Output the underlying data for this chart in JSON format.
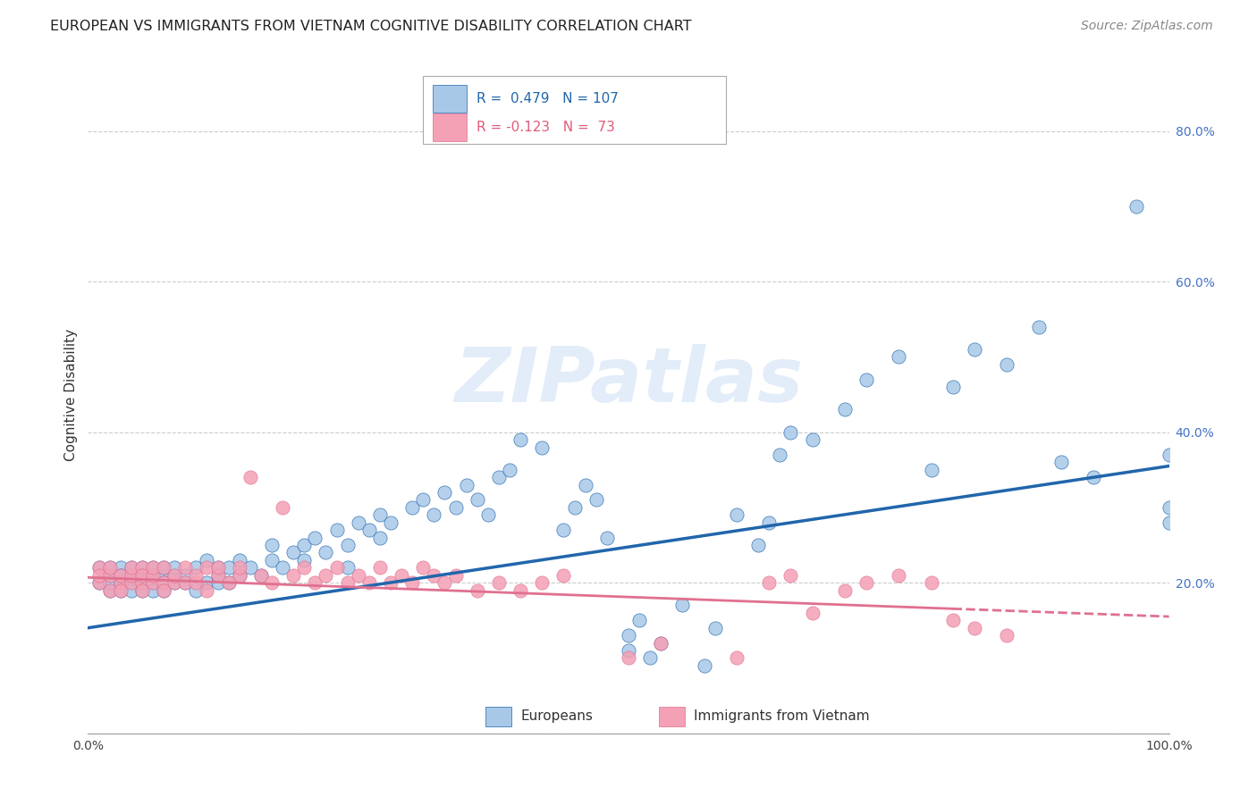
{
  "title": "EUROPEAN VS IMMIGRANTS FROM VIETNAM COGNITIVE DISABILITY CORRELATION CHART",
  "source": "Source: ZipAtlas.com",
  "ylabel": "Cognitive Disability",
  "title_fontsize": 11.5,
  "source_fontsize": 10,
  "ylabel_fontsize": 11,
  "blue_R": 0.479,
  "blue_N": 107,
  "pink_R": -0.123,
  "pink_N": 73,
  "blue_color": "#a8c8e8",
  "blue_line_color": "#2166ac",
  "pink_color": "#f4a0b5",
  "pink_line_color": "#e07090",
  "background_color": "#ffffff",
  "grid_color": "#cccccc",
  "legend_label_blue": "Europeans",
  "legend_label_pink": "Immigrants from Vietnam",
  "watermark": "ZIPatlas",
  "ylim": [
    0.0,
    0.9
  ],
  "xlim": [
    0.0,
    1.0
  ],
  "right_yticks": [
    0.0,
    0.2,
    0.4,
    0.6,
    0.8
  ],
  "right_ytick_labels": [
    "",
    "20.0%",
    "40.0%",
    "60.0%",
    "80.0%"
  ],
  "xtick_labels": [
    "0.0%",
    "",
    "",
    "",
    "",
    "100.0%"
  ],
  "blue_line_x0": 0.0,
  "blue_line_y0": 0.14,
  "blue_line_x1": 1.0,
  "blue_line_y1": 0.355,
  "pink_line_x0": 0.0,
  "pink_line_y0": 0.207,
  "pink_line_x1": 1.0,
  "pink_line_y1": 0.155,
  "blue_x": [
    0.01,
    0.01,
    0.02,
    0.02,
    0.02,
    0.02,
    0.03,
    0.03,
    0.03,
    0.03,
    0.03,
    0.04,
    0.04,
    0.04,
    0.04,
    0.05,
    0.05,
    0.05,
    0.05,
    0.05,
    0.06,
    0.06,
    0.06,
    0.06,
    0.07,
    0.07,
    0.07,
    0.07,
    0.08,
    0.08,
    0.08,
    0.09,
    0.09,
    0.1,
    0.1,
    0.11,
    0.11,
    0.12,
    0.12,
    0.12,
    0.13,
    0.13,
    0.14,
    0.14,
    0.15,
    0.16,
    0.17,
    0.17,
    0.18,
    0.19,
    0.2,
    0.2,
    0.21,
    0.22,
    0.23,
    0.24,
    0.24,
    0.25,
    0.26,
    0.27,
    0.27,
    0.28,
    0.3,
    0.31,
    0.32,
    0.33,
    0.34,
    0.35,
    0.36,
    0.37,
    0.38,
    0.39,
    0.4,
    0.42,
    0.44,
    0.45,
    0.46,
    0.47,
    0.48,
    0.5,
    0.5,
    0.51,
    0.52,
    0.53,
    0.55,
    0.57,
    0.58,
    0.6,
    0.62,
    0.63,
    0.64,
    0.65,
    0.67,
    0.7,
    0.72,
    0.75,
    0.78,
    0.8,
    0.82,
    0.85,
    0.88,
    0.9,
    0.93,
    0.97,
    1.0,
    1.0,
    1.0
  ],
  "blue_y": [
    0.2,
    0.22,
    0.19,
    0.21,
    0.2,
    0.22,
    0.2,
    0.21,
    0.19,
    0.22,
    0.21,
    0.2,
    0.22,
    0.21,
    0.19,
    0.2,
    0.21,
    0.19,
    0.22,
    0.21,
    0.2,
    0.22,
    0.21,
    0.19,
    0.21,
    0.2,
    0.22,
    0.19,
    0.2,
    0.21,
    0.22,
    0.2,
    0.21,
    0.19,
    0.22,
    0.2,
    0.23,
    0.2,
    0.22,
    0.21,
    0.22,
    0.2,
    0.23,
    0.21,
    0.22,
    0.21,
    0.23,
    0.25,
    0.22,
    0.24,
    0.25,
    0.23,
    0.26,
    0.24,
    0.27,
    0.25,
    0.22,
    0.28,
    0.27,
    0.29,
    0.26,
    0.28,
    0.3,
    0.31,
    0.29,
    0.32,
    0.3,
    0.33,
    0.31,
    0.29,
    0.34,
    0.35,
    0.39,
    0.38,
    0.27,
    0.3,
    0.33,
    0.31,
    0.26,
    0.13,
    0.11,
    0.15,
    0.1,
    0.12,
    0.17,
    0.09,
    0.14,
    0.29,
    0.25,
    0.28,
    0.37,
    0.4,
    0.39,
    0.43,
    0.47,
    0.5,
    0.35,
    0.46,
    0.51,
    0.49,
    0.54,
    0.36,
    0.34,
    0.7,
    0.3,
    0.28,
    0.37
  ],
  "pink_x": [
    0.01,
    0.01,
    0.01,
    0.02,
    0.02,
    0.02,
    0.03,
    0.03,
    0.03,
    0.04,
    0.04,
    0.04,
    0.05,
    0.05,
    0.05,
    0.05,
    0.06,
    0.06,
    0.06,
    0.07,
    0.07,
    0.07,
    0.08,
    0.08,
    0.09,
    0.09,
    0.1,
    0.1,
    0.11,
    0.11,
    0.12,
    0.12,
    0.13,
    0.14,
    0.14,
    0.15,
    0.16,
    0.17,
    0.18,
    0.19,
    0.2,
    0.21,
    0.22,
    0.23,
    0.24,
    0.25,
    0.26,
    0.27,
    0.28,
    0.29,
    0.3,
    0.31,
    0.32,
    0.33,
    0.34,
    0.36,
    0.38,
    0.4,
    0.42,
    0.44,
    0.5,
    0.53,
    0.6,
    0.63,
    0.65,
    0.67,
    0.7,
    0.72,
    0.75,
    0.78,
    0.8,
    0.82,
    0.85
  ],
  "pink_y": [
    0.2,
    0.22,
    0.21,
    0.19,
    0.21,
    0.22,
    0.2,
    0.21,
    0.19,
    0.2,
    0.21,
    0.22,
    0.2,
    0.22,
    0.21,
    0.19,
    0.2,
    0.21,
    0.22,
    0.2,
    0.19,
    0.22,
    0.2,
    0.21,
    0.2,
    0.22,
    0.2,
    0.21,
    0.22,
    0.19,
    0.21,
    0.22,
    0.2,
    0.21,
    0.22,
    0.34,
    0.21,
    0.2,
    0.3,
    0.21,
    0.22,
    0.2,
    0.21,
    0.22,
    0.2,
    0.21,
    0.2,
    0.22,
    0.2,
    0.21,
    0.2,
    0.22,
    0.21,
    0.2,
    0.21,
    0.19,
    0.2,
    0.19,
    0.2,
    0.21,
    0.1,
    0.12,
    0.1,
    0.2,
    0.21,
    0.16,
    0.19,
    0.2,
    0.21,
    0.2,
    0.15,
    0.14,
    0.13
  ]
}
